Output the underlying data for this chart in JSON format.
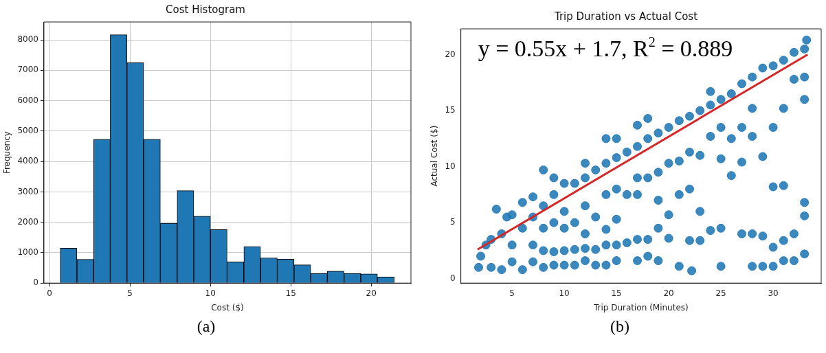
{
  "chart_data": [
    {
      "type": "histogram",
      "title": "Cost Histogram",
      "xlabel": "Cost ($)",
      "ylabel": "Frequency",
      "color": "#1f77b4",
      "bins": [
        0.66,
        1.7,
        2.74,
        3.77,
        4.81,
        5.85,
        6.89,
        7.93,
        8.97,
        10.0,
        11.04,
        12.08,
        13.12,
        14.16,
        15.2,
        16.24,
        17.27,
        18.31,
        19.35,
        20.39,
        21.43
      ],
      "values": [
        1150,
        780,
        4730,
        8170,
        7250,
        4730,
        1970,
        3040,
        2200,
        1760,
        700,
        1200,
        830,
        790,
        600,
        320,
        390,
        320,
        300,
        200
      ],
      "xlim": [
        -0.35,
        22.47
      ],
      "xticks": [
        0,
        5,
        10,
        15,
        20
      ],
      "ylim": [
        0,
        8590
      ],
      "yticks": [
        0,
        1000,
        2000,
        3000,
        4000,
        5000,
        6000,
        7000,
        8000
      ],
      "grid": true,
      "annotations": [
        "(a)"
      ]
    },
    {
      "type": "scatter",
      "title": "Trip Duration vs Actual Cost",
      "xlabel": "Trip Duration (Minutes)",
      "ylabel": "Actual Cost ($)",
      "marker": "circle",
      "xlim": [
        0.1,
        34.6
      ],
      "xticks": [
        5,
        10,
        15,
        20,
        25,
        30
      ],
      "ylim": [
        -0.4,
        22.3
      ],
      "yticks": [
        0,
        5,
        10,
        15,
        20
      ],
      "annotations": [
        "y = 0.55x + 1.7, R$^{2}$ = 0.889",
        "(b)"
      ],
      "series": [
        {
          "type": "scatter",
          "color": "#1f77b4",
          "x": [
            1.8,
            2,
            2.5,
            3,
            3,
            3.5,
            4,
            4,
            4.5,
            5,
            5,
            5,
            6,
            6,
            6,
            7,
            7,
            7,
            7,
            8,
            8,
            8,
            8,
            8,
            9,
            9,
            9,
            9,
            9,
            10,
            10,
            10,
            10,
            10,
            11,
            11,
            11,
            11,
            12,
            12,
            12,
            12,
            12,
            12,
            13,
            13,
            13,
            13,
            14,
            14,
            14,
            14,
            14,
            14,
            15,
            15,
            15,
            15,
            15,
            15,
            16,
            16,
            16,
            17,
            17,
            17,
            17,
            17,
            17,
            18,
            18,
            18,
            18,
            18,
            19,
            19,
            19,
            19,
            19,
            20,
            20,
            20,
            20,
            21,
            21,
            21,
            21,
            22.2,
            22,
            22,
            22,
            22,
            23,
            23,
            23,
            23,
            24,
            24,
            24,
            24,
            25,
            25,
            25,
            25,
            25,
            26,
            26,
            26,
            27,
            27,
            27,
            27,
            28,
            28,
            28,
            28,
            28,
            29,
            29,
            29,
            29,
            30,
            30,
            30,
            30,
            30,
            31,
            31,
            31,
            31,
            31,
            32,
            32,
            32,
            32,
            33,
            33,
            33,
            33,
            33,
            33,
            33.2
          ],
          "values": [
            1.0,
            2,
            3,
            1,
            3.5,
            6.2,
            0.8,
            4,
            5.5,
            1.5,
            3,
            5.7,
            0.8,
            4.5,
            6.8,
            1.5,
            3,
            5.5,
            7.3,
            1,
            2.5,
            4.5,
            6.5,
            9.7,
            1.2,
            2.4,
            5,
            7.5,
            9,
            1.2,
            2.5,
            4.5,
            6,
            8.5,
            1.2,
            2.6,
            5,
            8.5,
            1.6,
            2.7,
            4,
            6.5,
            9,
            10.3,
            1.2,
            2.6,
            5.5,
            9.7,
            1.2,
            3,
            4.4,
            7.5,
            10.3,
            12.5,
            1.6,
            3,
            5.3,
            8,
            10.8,
            12.5,
            3.2,
            7.5,
            11.3,
            1.6,
            3.5,
            7.5,
            9,
            11.8,
            13.7,
            2,
            3.5,
            9,
            12.5,
            14.3,
            1.6,
            4.5,
            7,
            9.5,
            13,
            3.6,
            5.7,
            10.3,
            13.5,
            1.1,
            7.5,
            10.5,
            14.1,
            0.7,
            3.4,
            8,
            11.3,
            14.5,
            3.4,
            6,
            11,
            15,
            4.3,
            12.7,
            15.5,
            16.7,
            1.1,
            4.5,
            10.7,
            13.5,
            16,
            9.2,
            12.5,
            16.5,
            4,
            10.4,
            13.5,
            17.4,
            1.1,
            4,
            12.7,
            15.2,
            18,
            1.1,
            3.8,
            10.9,
            18.8,
            1.1,
            2.8,
            8.2,
            13.5,
            19,
            1.6,
            3.4,
            8.3,
            15.2,
            19.5,
            1.6,
            4,
            17.8,
            20.2,
            2.2,
            5.6,
            6.8,
            16,
            18,
            20.5,
            21.3
          ]
        },
        {
          "type": "line",
          "marker": "none",
          "color": "#d62728",
          "x": [
            1.7,
            33.3
          ],
          "values": [
            2.6,
            20.0
          ]
        }
      ]
    }
  ]
}
